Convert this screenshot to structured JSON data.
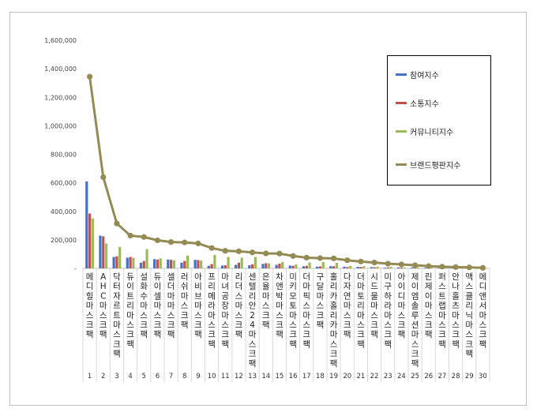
{
  "chart_data": {
    "type": "bar",
    "categories": [
      "1",
      "2",
      "3",
      "4",
      "5",
      "6",
      "7",
      "8",
      "9",
      "10",
      "11",
      "12",
      "13",
      "14",
      "15",
      "16",
      "17",
      "18",
      "19",
      "20",
      "21",
      "22",
      "23",
      "24",
      "25",
      "26",
      "27",
      "28",
      "29",
      "30"
    ],
    "brand_names": [
      "메디힐마스크팩",
      "AHC마스크팩",
      "닥터자르트마스크팩",
      "듀이트리마스크팩",
      "설화수마스크팩",
      "듀이셀마스크팩",
      "셀더마마스크팩",
      "러쉬마스크팩",
      "아비브마스크팩",
      "프리메라마스크팩",
      "마녀공장마스크팩",
      "리더스마스크팩",
      "센텔리안24마스크팩",
      "은율마스크팩",
      "차앤박마스크팩",
      "미키모토마스크팩",
      "더마픽스마스크팩",
      "구달마스크팩",
      "홀리카홀리카마스크팩",
      "다자연마스크팩",
      "더마토리마스크팩",
      "시드물마스크팩",
      "미구하라마스크팩",
      "아이디마스크팩",
      "제이엠솔루션마스크팩",
      "린제이마스크팩",
      "퍼스트랩마스크팩",
      "안나홀츠마스크팩",
      "맥스클리닉마스크팩",
      "메디앤서마스크팩"
    ],
    "series": [
      {
        "name": "참여지수",
        "color": "#4472c4",
        "values": [
          610000,
          230000,
          80000,
          75000,
          40000,
          65000,
          62000,
          40000,
          60000,
          18000,
          20000,
          25000,
          22000,
          32000,
          25000,
          20000,
          15000,
          12000,
          16000,
          12000,
          11000,
          9000,
          5000,
          7000,
          7000,
          5000,
          4000,
          3000,
          2000,
          2000
        ]
      },
      {
        "name": "소통지수",
        "color": "#c0504d",
        "values": [
          385000,
          225000,
          85000,
          80000,
          52000,
          62000,
          60000,
          52000,
          58000,
          30000,
          22000,
          40000,
          28000,
          36000,
          33000,
          18000,
          18000,
          14000,
          15000,
          9000,
          10000,
          8000,
          7000,
          6000,
          8000,
          4000,
          3000,
          3000,
          2000,
          1000
        ]
      },
      {
        "name": "커뮤니티지수",
        "color": "#9bbb59",
        "values": [
          350000,
          175000,
          150000,
          75000,
          135000,
          70000,
          57000,
          90000,
          55000,
          95000,
          80000,
          75000,
          80000,
          35000,
          45000,
          28000,
          42000,
          45000,
          40000,
          18000,
          15000,
          12000,
          11000,
          7000,
          7000,
          5000,
          5000,
          3000,
          3000,
          2000
        ]
      },
      {
        "name": "브랜드평판지수",
        "color": "#948a54",
        "type": "line",
        "values": [
          1345000,
          640000,
          315000,
          230000,
          220000,
          197000,
          185000,
          182000,
          175000,
          143000,
          123000,
          120000,
          112000,
          105000,
          104000,
          87000,
          75000,
          72000,
          70000,
          57000,
          48000,
          41000,
          33000,
          28000,
          22000,
          16000,
          12000,
          9000,
          7000,
          4000
        ]
      }
    ],
    "ylim": [
      0,
      1600000
    ],
    "yticks": [
      "-",
      "200,000",
      "400,000",
      "600,000",
      "800,000",
      "1,000,000",
      "1,200,000",
      "1,400,000",
      "1,600,000"
    ],
    "grid": false,
    "legend_position": "right"
  }
}
